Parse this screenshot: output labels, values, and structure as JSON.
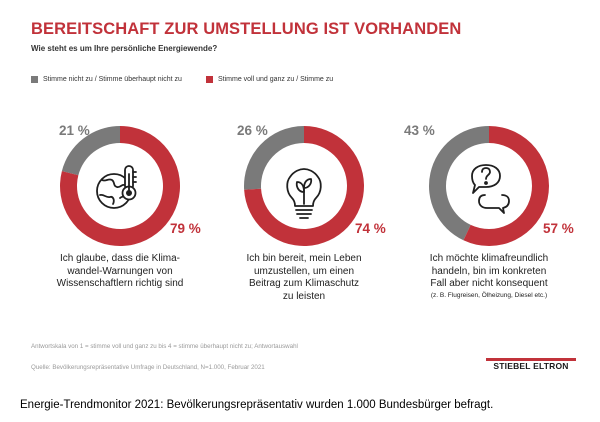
{
  "title": "BEREITSCHAFT ZUR UMSTELLUNG IST VORHANDEN",
  "subtitle": "Wie steht es um Ihre persönliche Energiewende?",
  "colors": {
    "disagree": "#7a7a7a",
    "agree": "#c1323a",
    "title": "#c1323a"
  },
  "chart_data": {
    "type": "pie",
    "title": "BEREITSCHAFT ZUR UMSTELLUNG IST VORHANDEN",
    "subtitle": "Wie steht es um Ihre persönliche Energiewende?",
    "legend": [
      "Stimme nicht zu / Stimme überhaupt nicht zu",
      "Stimme voll und ganz zu / Stimme zu"
    ],
    "charts": [
      {
        "disagree_value": 21,
        "agree_value": 79,
        "disagree_label": "21 %",
        "agree_label": "79 %",
        "icon": "globe-thermometer-icon",
        "statement": [
          "Ich glaube, dass die Klima-",
          "wandel-Warnungen von",
          "Wissenschaftlern richtig sind"
        ],
        "note": ""
      },
      {
        "disagree_value": 26,
        "agree_value": 74,
        "disagree_label": "26 %",
        "agree_label": "74 %",
        "icon": "lightbulb-leaf-icon",
        "statement": [
          "Ich bin bereit, mein Leben",
          "umzustellen, um einen",
          "Beitrag zum Klimaschutz",
          "zu leisten"
        ],
        "note": ""
      },
      {
        "disagree_value": 43,
        "agree_value": 57,
        "disagree_label": "43 %",
        "agree_label": "57 %",
        "icon": "speech-bubbles-question-icon",
        "statement": [
          "Ich möchte klimafreundlich",
          "handeln, bin im konkreten",
          "Fall aber nicht konsequent"
        ],
        "note": "(z. B. Flugreisen, Ölheizung, Diesel etc.)"
      }
    ]
  },
  "footnote": "Antwortskala von 1 = stimme voll und ganz zu bis 4 = stimme überhaupt nicht zu; Antwortauswahl",
  "source": "Quelle: Bevölkerungsrepräsentative Umfrage in Deutschland, N=1.000, Februar 2021",
  "logo": "STIEBEL ELTRON",
  "caption": "Energie-Trendmonitor 2021: Bevölkerungsrepräsentativ wurden 1.000 Bundesbürger befragt."
}
